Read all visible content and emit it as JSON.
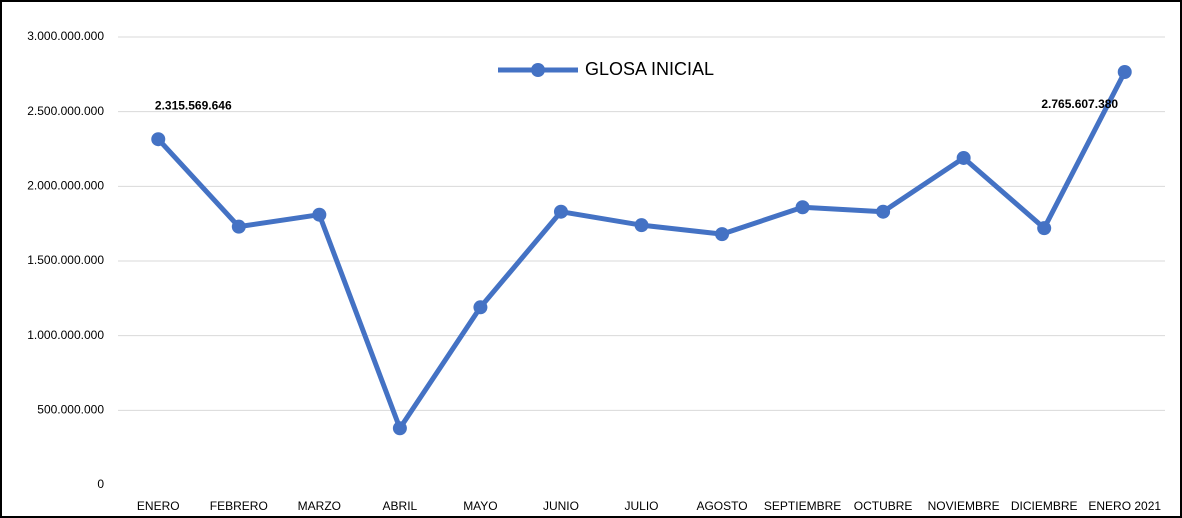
{
  "chart_data": {
    "type": "line",
    "categories": [
      "ENERO",
      "FEBRERO",
      "MARZO",
      "ABRIL",
      "MAYO",
      "JUNIO",
      "JULIO",
      "AGOSTO",
      "SEPTIEMBRE",
      "OCTUBRE",
      "NOVIEMBRE",
      "DICIEMBRE",
      "ENERO 2021"
    ],
    "series": [
      {
        "name": "GLOSA INICIAL",
        "color": "#4472c4",
        "values": [
          2315569646,
          1730000000,
          1810000000,
          380000000,
          1190000000,
          1830000000,
          1740000000,
          1680000000,
          1860000000,
          1830000000,
          2190000000,
          1720000000,
          2765607380
        ],
        "value_labels": [
          "2.315.569.646",
          null,
          null,
          null,
          null,
          null,
          null,
          null,
          null,
          null,
          null,
          null,
          "2.765.607.380"
        ]
      }
    ],
    "ylim": [
      0,
      3000000000
    ],
    "yticks": [
      0,
      {
        "value": 500000000,
        "label": "500.000.000"
      },
      {
        "value": 1000000000,
        "label": "1.000.000.000"
      },
      {
        "value": 1500000000,
        "label": "1.500.000.000"
      },
      {
        "value": 2000000000,
        "label": "2.000.000.000"
      },
      {
        "value": 2500000000,
        "label": "2.500.000.000"
      },
      {
        "value": 3000000000,
        "label": "3.000.000.000"
      }
    ],
    "grid": true,
    "legend": "top"
  }
}
